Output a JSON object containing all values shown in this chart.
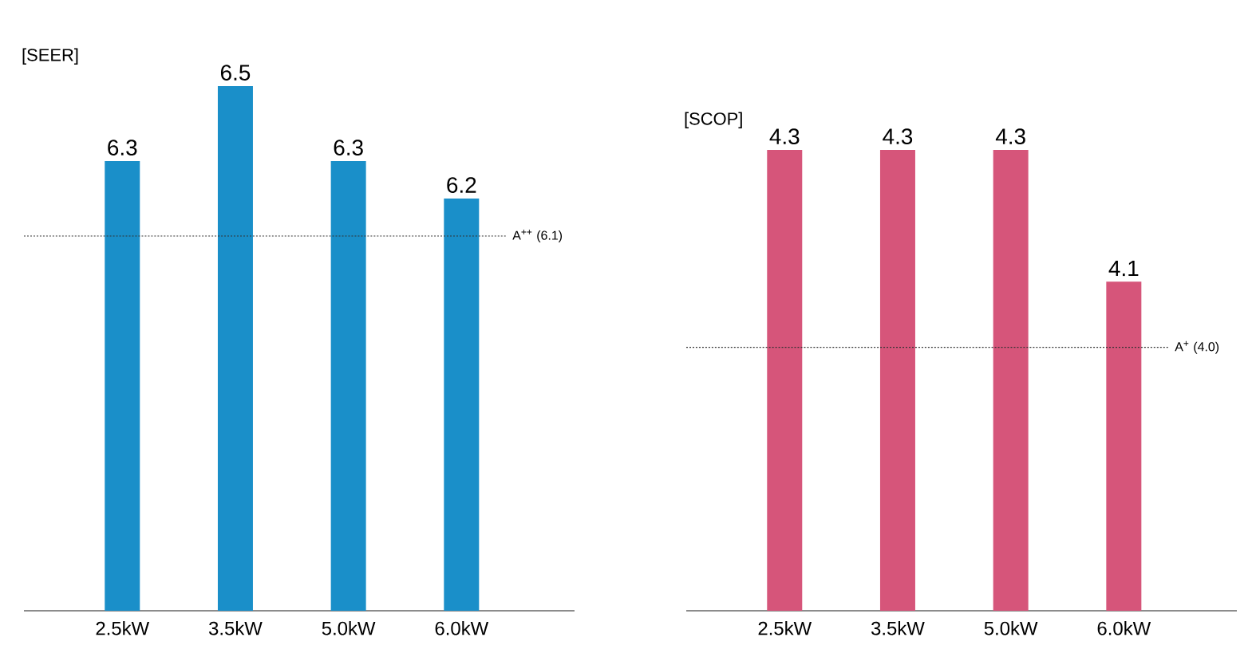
{
  "chart_data": [
    {
      "type": "bar",
      "title": "[SEER]",
      "categories": [
        "2.5kW",
        "3.5kW",
        "5.0kW",
        "6.0kW"
      ],
      "values": [
        6.3,
        6.5,
        6.3,
        6.2
      ],
      "color": "#1a8fc9",
      "ylim": [
        5.1,
        6.5
      ],
      "data_labels": true,
      "tick_labels": "x",
      "ref_lines": [
        {
          "axis": "y",
          "value": 6.1,
          "label": "A$^{++}$ (6.1)",
          "line_style": "dotted"
        }
      ]
    },
    {
      "type": "bar",
      "title": "[SCOP]",
      "categories": [
        "2.5kW",
        "3.5kW",
        "5.0kW",
        "6.0kW"
      ],
      "values": [
        4.3,
        4.3,
        4.3,
        4.1
      ],
      "color": "#d6557a",
      "ylim": [
        3.6,
        4.3
      ],
      "data_labels": true,
      "tick_labels": "x",
      "ref_lines": [
        {
          "axis": "y",
          "value": 4.0,
          "label": "A$^{+}$ (4.0)",
          "line_style": "dotted"
        }
      ]
    }
  ]
}
